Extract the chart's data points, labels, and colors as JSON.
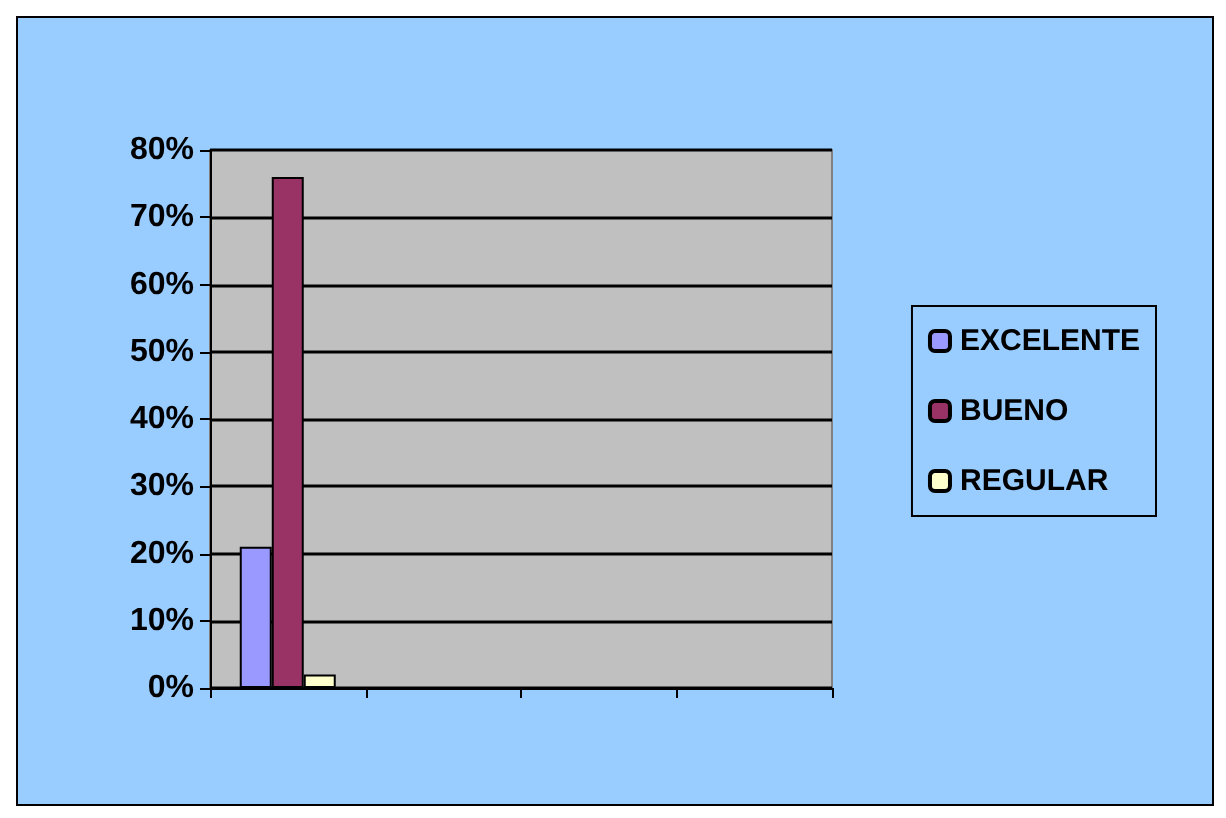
{
  "chart_data": {
    "type": "bar",
    "categories": [
      null,
      null,
      null,
      null
    ],
    "series": [
      {
        "name": "EXCELENTE",
        "color": "#9999ff",
        "values": [
          21,
          null,
          null,
          null
        ]
      },
      {
        "name": "BUENO",
        "color": "#993366",
        "values": [
          76,
          null,
          null,
          null
        ]
      },
      {
        "name": "REGULAR",
        "color": "#ffffcc",
        "values": [
          2,
          null,
          null,
          null
        ]
      }
    ],
    "ylim": [
      0,
      80
    ],
    "yticks": [
      {
        "value": 0,
        "label": "0%"
      },
      {
        "value": 10,
        "label": "10%"
      },
      {
        "value": 20,
        "label": "20%"
      },
      {
        "value": 30,
        "label": "30%"
      },
      {
        "value": 40,
        "label": "40%"
      },
      {
        "value": 50,
        "label": "50%"
      },
      {
        "value": 60,
        "label": "60%"
      },
      {
        "value": 70,
        "label": "70%"
      },
      {
        "value": 80,
        "label": "80%"
      }
    ],
    "grid": true,
    "legend": "right"
  }
}
